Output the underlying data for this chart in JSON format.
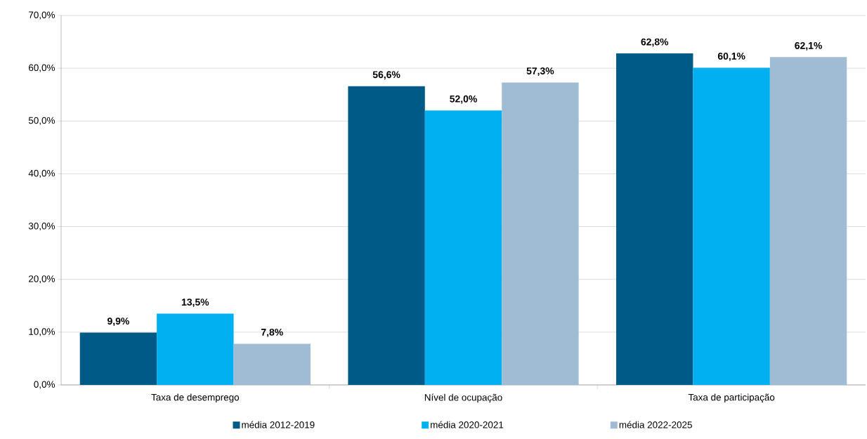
{
  "chart_data": {
    "type": "bar",
    "categories": [
      "Taxa de desemprego",
      "Nível de ocupação",
      "Taxa de participação"
    ],
    "series": [
      {
        "name": "média 2012-2019",
        "color": "#005a87",
        "values": [
          9.9,
          56.6,
          62.8
        ],
        "value_labels": [
          "9,9%",
          "56,6%",
          "62,8%"
        ]
      },
      {
        "name": "média 2020-2021",
        "color": "#00b0f0",
        "values": [
          13.5,
          52.0,
          60.1
        ],
        "value_labels": [
          "13,5%",
          "52,0%",
          "60,1%"
        ]
      },
      {
        "name": "média 2022-2025",
        "color": "#a0bcd4",
        "values": [
          7.8,
          57.3,
          62.1
        ],
        "value_labels": [
          "7,8%",
          "57,3%",
          "62,1%"
        ]
      }
    ],
    "ylim": [
      0,
      70
    ],
    "yticks": [
      {
        "value": 0,
        "label": "0,0%"
      },
      {
        "value": 10,
        "label": "10,0%"
      },
      {
        "value": 20,
        "label": "20,0%"
      },
      {
        "value": 30,
        "label": "30,0%"
      },
      {
        "value": 40,
        "label": "40,0%"
      },
      {
        "value": 50,
        "label": "50,0%"
      },
      {
        "value": 60,
        "label": "60,0%"
      },
      {
        "value": 70,
        "label": "70,0%"
      }
    ],
    "grid": "y",
    "legend": "bottom"
  }
}
